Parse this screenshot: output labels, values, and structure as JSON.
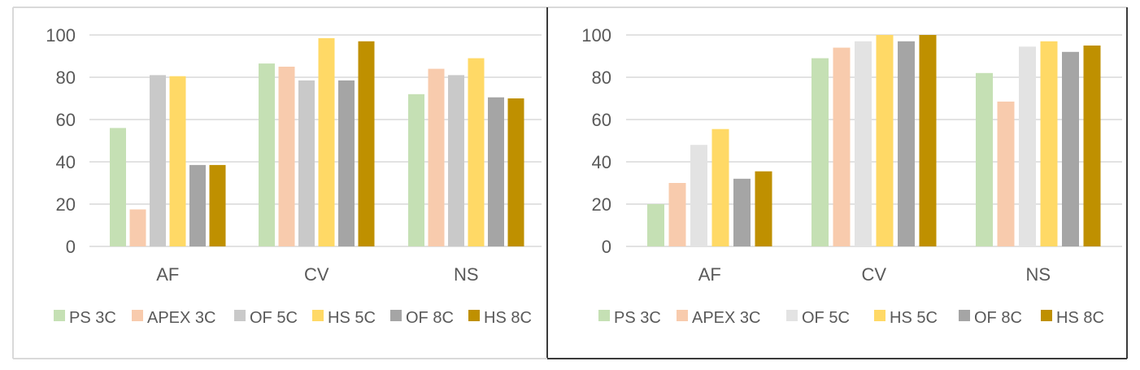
{
  "chart_data": [
    {
      "type": "bar",
      "title": "",
      "xlabel": "",
      "ylabel": "",
      "ylim": [
        0,
        100
      ],
      "yticks": [
        0,
        20,
        40,
        60,
        80,
        100
      ],
      "grid": true,
      "legend_position": "bottom",
      "categories": [
        "AF",
        "CV",
        "NS"
      ],
      "series": [
        {
          "name": "PS 3C",
          "color": "#c5e0b4",
          "values": [
            56,
            86.5,
            72
          ]
        },
        {
          "name": "APEX 3C",
          "color": "#f8cbad",
          "values": [
            17.5,
            85,
            84
          ]
        },
        {
          "name": "OF 5C",
          "color": "#c9c9c9",
          "values": [
            81,
            78.5,
            81
          ]
        },
        {
          "name": "HS 5C",
          "color": "#ffd966",
          "values": [
            80.5,
            98.5,
            89
          ]
        },
        {
          "name": "OF 8C",
          "color": "#a5a5a5",
          "values": [
            38.5,
            78.5,
            70.5
          ]
        },
        {
          "name": "HS 8C",
          "color": "#bf9000",
          "values": [
            38.5,
            97,
            70
          ]
        }
      ]
    },
    {
      "type": "bar",
      "title": "",
      "xlabel": "",
      "ylabel": "",
      "ylim": [
        0,
        100
      ],
      "yticks": [
        0,
        20,
        40,
        60,
        80,
        100
      ],
      "grid": true,
      "legend_position": "bottom",
      "categories": [
        "AF",
        "CV",
        "NS"
      ],
      "series": [
        {
          "name": "PS 3C",
          "color": "#c5e0b4",
          "values": [
            20,
            89,
            82
          ]
        },
        {
          "name": "APEX 3C",
          "color": "#f8cbad",
          "values": [
            30,
            94,
            68.5
          ]
        },
        {
          "name": "OF 5C",
          "color": "#e3e3e3",
          "values": [
            48,
            97,
            94.5
          ]
        },
        {
          "name": "HS 5C",
          "color": "#ffd966",
          "values": [
            55.5,
            100,
            97
          ]
        },
        {
          "name": "OF 8C",
          "color": "#a5a5a5",
          "values": [
            32,
            97,
            92
          ]
        },
        {
          "name": "HS 8C",
          "color": "#bf9000",
          "values": [
            35.5,
            100,
            95
          ]
        }
      ]
    }
  ]
}
